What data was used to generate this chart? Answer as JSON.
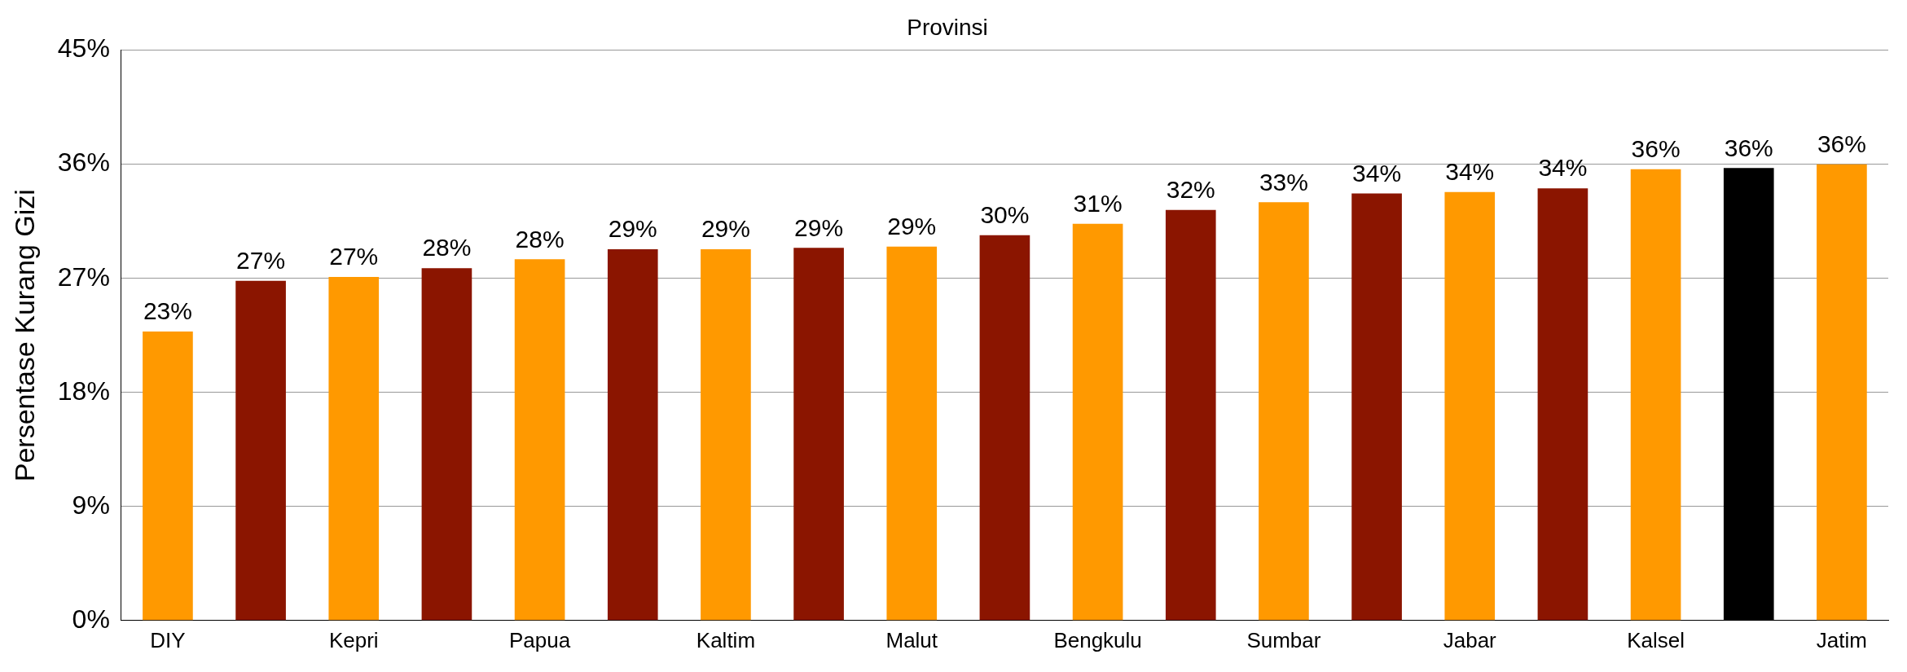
{
  "chart_data": {
    "type": "bar",
    "title": "Provinsi",
    "ylabel": "Persentase Kurang Gizi",
    "categories": [
      "DIY",
      null,
      "Kepri",
      null,
      "Papua",
      null,
      "Kaltim",
      null,
      "Malut",
      null,
      "Bengkulu",
      null,
      "Sumbar",
      null,
      "Jabar",
      null,
      "Kalsel",
      null,
      "Jatim"
    ],
    "values": [
      22.8,
      26.8,
      27.1,
      27.8,
      28.5,
      29.3,
      29.3,
      29.4,
      29.5,
      30.4,
      31.3,
      32.4,
      33.0,
      33.7,
      33.8,
      34.1,
      35.6,
      35.7,
      36.0
    ],
    "colors": [
      "#ff9900",
      "#8b1500",
      "#ff9900",
      "#8b1500",
      "#ff9900",
      "#8b1500",
      "#ff9900",
      "#8b1500",
      "#ff9900",
      "#8b1500",
      "#ff9900",
      "#8b1500",
      "#ff9900",
      "#8b1500",
      "#ff9900",
      "#8b1500",
      "#ff9900",
      "#000000",
      "#ff9900"
    ],
    "value_labels": [
      "23%",
      "27%",
      "27%",
      "28%",
      "28%",
      "29%",
      "29%",
      "29%",
      "29%",
      "30%",
      "31%",
      "32%",
      "33%",
      "34%",
      "34%",
      "34%",
      "36%",
      "36%",
      "36%"
    ],
    "ylim": [
      0,
      45
    ],
    "yticks": [
      {
        "value": 0,
        "label": "0%"
      },
      {
        "value": 9,
        "label": "9%"
      },
      {
        "value": 18,
        "label": "18%"
      },
      {
        "value": 27,
        "label": "27%"
      },
      {
        "value": 36,
        "label": "36%"
      },
      {
        "value": 45,
        "label": "45%"
      }
    ],
    "grid": "y"
  }
}
